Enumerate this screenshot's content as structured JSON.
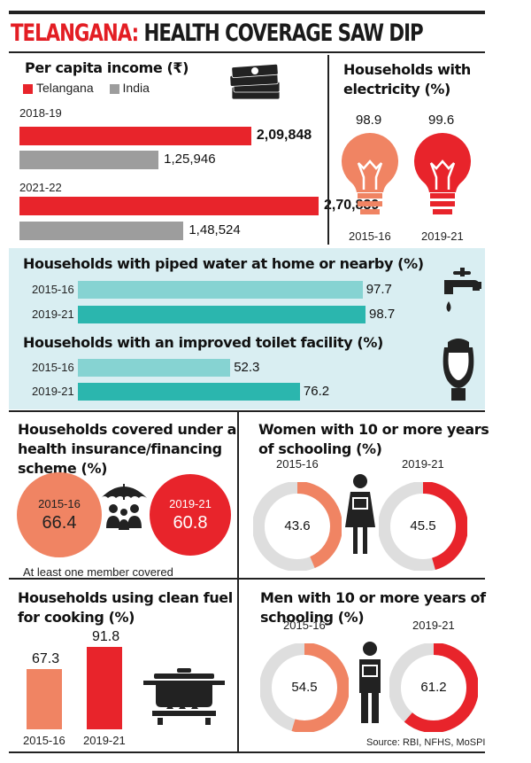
{
  "title": {
    "part1": "TELANGANA:",
    "part2": "HEALTH COVERAGE SAW DIP"
  },
  "colors": {
    "telangana": "#e8242b",
    "india": "#9d9d9d",
    "orange": "#f08463",
    "red": "#e8242b",
    "teal_light": "#86d3d2",
    "teal_dark": "#2bb6ae",
    "donut_rest": "#dedede"
  },
  "icons": {
    "income": "banknote-stack-icon",
    "bulb": "light-bulb-icon",
    "tap": "water-tap-icon",
    "toilet": "toilet-icon",
    "umbrella": "umbrella-family-icon",
    "woman": "woman-reading-icon",
    "man": "man-reading-icon",
    "pot": "cooking-pot-stove-icon"
  },
  "income": {
    "heading": "Per capita income (₹)",
    "legend": [
      "Telangana",
      "India"
    ]
  },
  "electricity": {
    "heading_l1": "Households with",
    "heading_l2": "electricity (%)"
  },
  "water": {
    "heading": "Households with piped water at home or nearby (%)"
  },
  "toilet": {
    "heading": "Households with an improved toilet facility (%)"
  },
  "insurance": {
    "heading_l1": "Households covered under a",
    "heading_l2": "health insurance/financing",
    "heading_l3": "scheme (%)",
    "note": "At least one member covered"
  },
  "women": {
    "heading_l1": "Women with 10 or more years",
    "heading_l2": "of schooling (%)"
  },
  "fuel": {
    "heading_l1": "Households using clean fuel",
    "heading_l2": "for cooking (%)"
  },
  "men": {
    "heading_l1": "Men with 10 or more years of",
    "heading_l2": "schooling (%)"
  },
  "source": "Source: RBI, NFHS, MoSPI",
  "chart_data": [
    {
      "id": "income",
      "type": "bar",
      "categories": [
        "2018-19",
        "2021-22"
      ],
      "series": [
        {
          "name": "Telangana",
          "values": [
            209848,
            270839
          ],
          "labels": [
            "2,09,848",
            "2,70,839"
          ]
        },
        {
          "name": "India",
          "values": [
            125946,
            148524
          ],
          "labels": [
            "1,25,946",
            "1,48,524"
          ]
        }
      ]
    },
    {
      "id": "electricity",
      "type": "bar",
      "categories": [
        "2015-16",
        "2019-21"
      ],
      "values": [
        98.9,
        99.6
      ]
    },
    {
      "id": "water",
      "type": "bar",
      "categories": [
        "2015-16",
        "2019-21"
      ],
      "values": [
        97.7,
        98.7
      ]
    },
    {
      "id": "toilet",
      "type": "bar",
      "categories": [
        "2015-16",
        "2019-21"
      ],
      "values": [
        52.3,
        76.2
      ]
    },
    {
      "id": "insurance",
      "type": "bar",
      "categories": [
        "2015-16",
        "2019-21"
      ],
      "values": [
        66.4,
        60.8
      ]
    },
    {
      "id": "women",
      "type": "pie",
      "categories": [
        "2015-16",
        "2019-21"
      ],
      "values": [
        43.6,
        45.5
      ]
    },
    {
      "id": "fuel",
      "type": "bar",
      "categories": [
        "2015-16",
        "2019-21"
      ],
      "values": [
        67.3,
        91.8
      ]
    },
    {
      "id": "men",
      "type": "pie",
      "categories": [
        "2015-16",
        "2019-21"
      ],
      "values": [
        54.5,
        61.2
      ]
    }
  ]
}
